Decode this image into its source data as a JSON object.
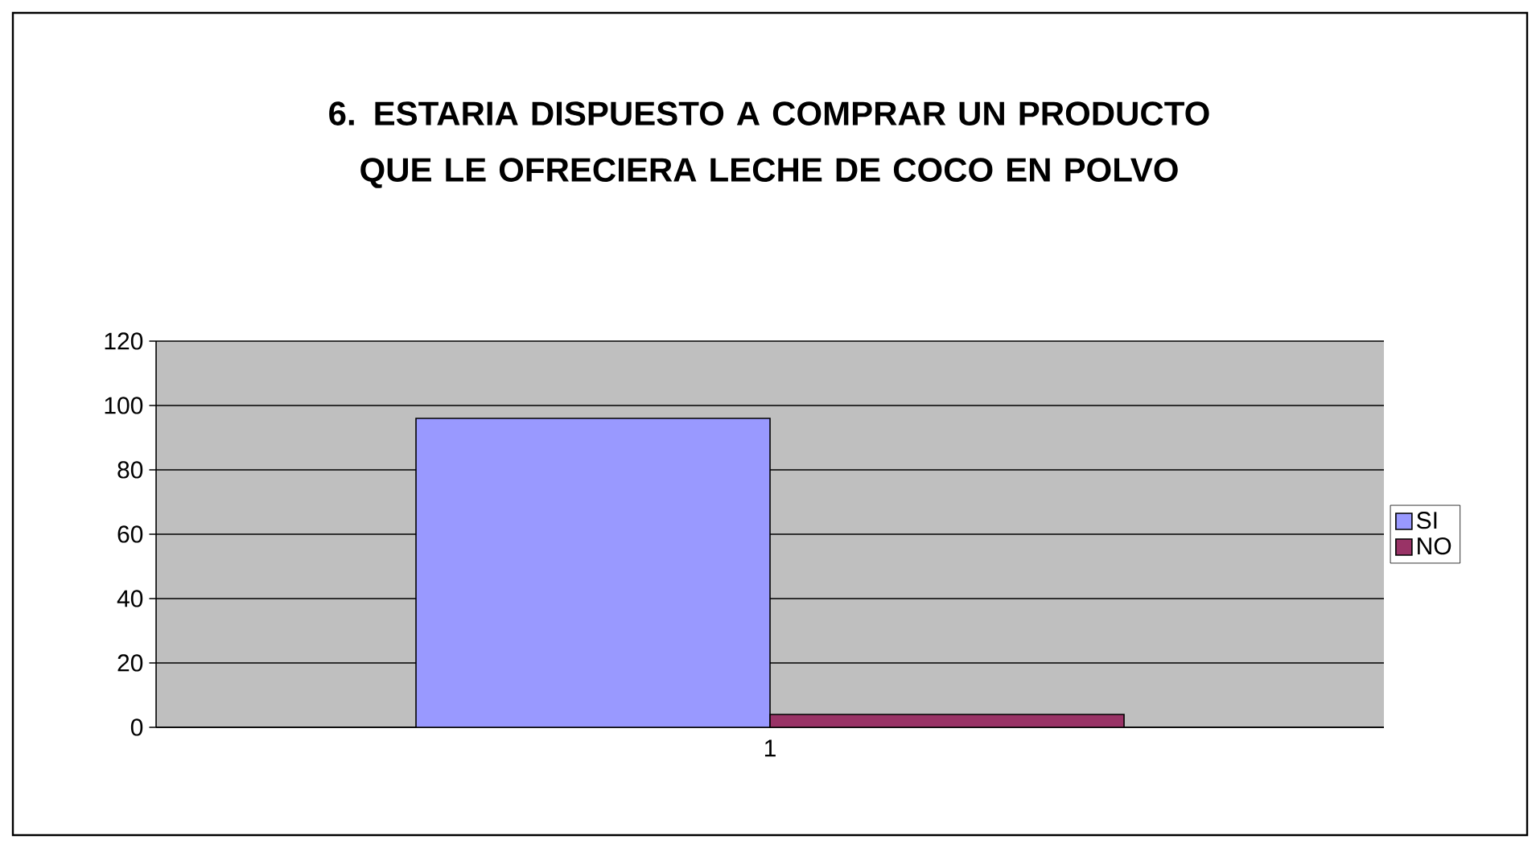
{
  "chart_data": {
    "type": "bar",
    "title": "6. ESTARIA DISPUESTO A COMPRAR UN PRODUCTO QUE LE OFRECIERA LECHE DE COCO EN POLVO",
    "categories": [
      "1"
    ],
    "series": [
      {
        "name": "SI",
        "color": "#9999ff",
        "values": [
          96
        ]
      },
      {
        "name": "NO",
        "color": "#993366",
        "values": [
          4
        ]
      }
    ],
    "ylim": [
      0,
      120
    ],
    "yticks": [
      0,
      20,
      40,
      60,
      80,
      100,
      120
    ],
    "grid": "y",
    "legend": "right"
  }
}
